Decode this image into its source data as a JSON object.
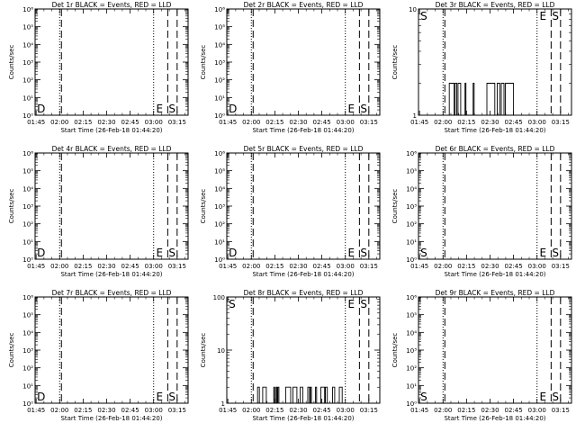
{
  "chart_data": [
    {
      "type": "line",
      "title": "Det 1r BLACK = Events, RED = LLD",
      "xlabel": "Start Time (26-Feb-18 01:44:20)",
      "ylabel": "Counts/sec",
      "log": true,
      "ylim": [
        1,
        1000000
      ],
      "ytick_values": [
        1,
        10,
        100,
        1000,
        10000,
        100000,
        1000000
      ],
      "ytick_labels": [
        "10⁰",
        "10¹",
        "10²",
        "10³",
        "10⁴",
        "10⁵",
        "10⁶"
      ],
      "xlim": [
        "01:44:20",
        "03:22:00"
      ],
      "xtick_labels": [
        "01:45",
        "02:00",
        "02:15",
        "02:30",
        "02:45",
        "03:00",
        "03:15"
      ],
      "dotted_lines": [
        "02:00",
        "03:00"
      ],
      "dashed_lines": [
        "02:00",
        "03:09",
        "03:15"
      ],
      "annotations": [
        {
          "text": "D",
          "x": "01:45",
          "position": "bottom"
        },
        {
          "text": "E",
          "x": "03:01",
          "position": "bottom"
        },
        {
          "text": "S",
          "x": "03:09",
          "position": "bottom"
        }
      ],
      "series": []
    },
    {
      "type": "line",
      "title": "Det 2r BLACK = Events, RED = LLD",
      "xlabel": "Start Time (26-Feb-18 01:44:20)",
      "ylabel": "Counts/sec",
      "log": true,
      "ylim": [
        1,
        1000000
      ],
      "ytick_values": [
        1,
        10,
        100,
        1000,
        10000,
        100000,
        1000000
      ],
      "ytick_labels": [
        "10⁰",
        "10¹",
        "10²",
        "10³",
        "10⁴",
        "10⁵",
        "10⁶"
      ],
      "xlim": [
        "01:44:20",
        "03:22:00"
      ],
      "xtick_labels": [
        "01:45",
        "02:00",
        "02:15",
        "02:30",
        "02:45",
        "03:00",
        "03:15"
      ],
      "dotted_lines": [
        "02:00",
        "03:00"
      ],
      "dashed_lines": [
        "02:00",
        "03:09",
        "03:15"
      ],
      "annotations": [
        {
          "text": "D",
          "x": "01:45",
          "position": "bottom"
        },
        {
          "text": "E",
          "x": "03:01",
          "position": "bottom"
        },
        {
          "text": "S",
          "x": "03:09",
          "position": "bottom"
        }
      ],
      "series": []
    },
    {
      "type": "line",
      "title": "Det 3r BLACK = Events, RED = LLD",
      "xlabel": "Start Time (26-Feb-18 01:44:20)",
      "ylabel": "Counts/sec",
      "log": true,
      "ylim": [
        1,
        10
      ],
      "ytick_values": [
        1,
        10
      ],
      "ytick_labels": [
        "1",
        "10"
      ],
      "xlim": [
        "01:44:20",
        "03:22:00"
      ],
      "xtick_labels": [
        "01:45",
        "02:00",
        "02:15",
        "02:30",
        "02:45",
        "03:00",
        "03:15"
      ],
      "dotted_lines": [
        "02:00",
        "03:00"
      ],
      "dashed_lines": [
        "02:00",
        "03:09",
        "03:15"
      ],
      "annotations": [
        {
          "text": "S",
          "x": "01:45",
          "position": "top"
        },
        {
          "text": "E",
          "x": "03:01",
          "position": "top"
        },
        {
          "text": "S",
          "x": "03:09",
          "position": "top"
        }
      ],
      "series": [
        {
          "style": "bursts",
          "color": "#000000",
          "bursts": [
            {
              "from": "02:04",
              "to": "02:20",
              "value": 2
            },
            {
              "from": "02:28",
              "to": "02:45",
              "value": 2
            }
          ]
        }
      ]
    },
    {
      "type": "line",
      "title": "Det 4r BLACK = Events, RED = LLD",
      "xlabel": "Start Time (26-Feb-18 01:44:20)",
      "ylabel": "Counts/sec",
      "log": true,
      "ylim": [
        1,
        1000000
      ],
      "ytick_values": [
        1,
        10,
        100,
        1000,
        10000,
        100000,
        1000000
      ],
      "ytick_labels": [
        "10⁰",
        "10¹",
        "10²",
        "10³",
        "10⁴",
        "10⁵",
        "10⁶"
      ],
      "xlim": [
        "01:44:20",
        "03:22:00"
      ],
      "xtick_labels": [
        "01:45",
        "02:00",
        "02:15",
        "02:30",
        "02:45",
        "03:00",
        "03:15"
      ],
      "dotted_lines": [
        "02:00",
        "03:00"
      ],
      "dashed_lines": [
        "02:00",
        "03:09",
        "03:15"
      ],
      "annotations": [
        {
          "text": "D",
          "x": "01:45",
          "position": "bottom"
        },
        {
          "text": "E",
          "x": "03:01",
          "position": "bottom"
        },
        {
          "text": "S",
          "x": "03:09",
          "position": "bottom"
        }
      ],
      "series": []
    },
    {
      "type": "line",
      "title": "Det 5r BLACK = Events, RED = LLD",
      "xlabel": "Start Time (26-Feb-18 01:44:20)",
      "ylabel": "Counts/sec",
      "log": true,
      "ylim": [
        1,
        1000000
      ],
      "ytick_values": [
        1,
        10,
        100,
        1000,
        10000,
        100000,
        1000000
      ],
      "ytick_labels": [
        "10⁰",
        "10¹",
        "10²",
        "10³",
        "10⁴",
        "10⁵",
        "10⁶"
      ],
      "xlim": [
        "01:44:20",
        "03:22:00"
      ],
      "xtick_labels": [
        "01:45",
        "02:00",
        "02:15",
        "02:30",
        "02:45",
        "03:00",
        "03:15"
      ],
      "dotted_lines": [
        "02:00",
        "03:00"
      ],
      "dashed_lines": [
        "02:00",
        "03:09",
        "03:15"
      ],
      "annotations": [
        {
          "text": "D",
          "x": "01:45",
          "position": "bottom"
        },
        {
          "text": "E",
          "x": "03:01",
          "position": "bottom"
        },
        {
          "text": "S",
          "x": "03:09",
          "position": "bottom"
        }
      ],
      "series": []
    },
    {
      "type": "line",
      "title": "Det 6r BLACK = Events, RED = LLD",
      "xlabel": "Start Time (26-Feb-18 01:44:20)",
      "ylabel": "Counts/sec",
      "log": true,
      "ylim": [
        1,
        1000000
      ],
      "ytick_values": [
        1,
        10,
        100,
        1000,
        10000,
        100000,
        1000000
      ],
      "ytick_labels": [
        "10⁰",
        "10¹",
        "10²",
        "10³",
        "10⁴",
        "10⁵",
        "10⁶"
      ],
      "xlim": [
        "01:44:20",
        "03:22:00"
      ],
      "xtick_labels": [
        "01:45",
        "02:00",
        "02:15",
        "02:30",
        "02:45",
        "03:00",
        "03:15"
      ],
      "dotted_lines": [
        "02:00",
        "03:00"
      ],
      "dashed_lines": [
        "02:00",
        "03:09",
        "03:15"
      ],
      "annotations": [
        {
          "text": "S",
          "x": "01:45",
          "position": "bottom"
        },
        {
          "text": "E",
          "x": "03:01",
          "position": "bottom"
        },
        {
          "text": "S",
          "x": "03:09",
          "position": "bottom"
        }
      ],
      "series": []
    },
    {
      "type": "line",
      "title": "Det 7r BLACK = Events, RED = LLD",
      "xlabel": "Start Time (26-Feb-18 01:44:20)",
      "ylabel": "Counts/sec",
      "log": true,
      "ylim": [
        1,
        1000000
      ],
      "ytick_values": [
        1,
        10,
        100,
        1000,
        10000,
        100000,
        1000000
      ],
      "ytick_labels": [
        "10⁰",
        "10¹",
        "10²",
        "10³",
        "10⁴",
        "10⁵",
        "10⁶"
      ],
      "xlim": [
        "01:44:20",
        "03:22:00"
      ],
      "xtick_labels": [
        "01:45",
        "02:00",
        "02:15",
        "02:30",
        "02:45",
        "03:00",
        "03:15"
      ],
      "dotted_lines": [
        "02:00",
        "03:00"
      ],
      "dashed_lines": [
        "02:00",
        "03:09",
        "03:15"
      ],
      "annotations": [
        {
          "text": "D",
          "x": "01:45",
          "position": "bottom"
        },
        {
          "text": "E",
          "x": "03:01",
          "position": "bottom"
        },
        {
          "text": "S",
          "x": "03:09",
          "position": "bottom"
        }
      ],
      "series": []
    },
    {
      "type": "line",
      "title": "Det 8r BLACK = Events, RED = LLD",
      "xlabel": "Start Time (26-Feb-18 01:44:20)",
      "ylabel": "Counts/sec",
      "log": true,
      "ylim": [
        1,
        100
      ],
      "ytick_values": [
        1,
        10,
        100
      ],
      "ytick_labels": [
        "1",
        "10",
        "100"
      ],
      "xlim": [
        "01:44:20",
        "03:22:00"
      ],
      "xtick_labels": [
        "01:45",
        "02:00",
        "02:15",
        "02:30",
        "02:45",
        "03:00",
        "03:15"
      ],
      "dotted_lines": [
        "02:00",
        "03:00"
      ],
      "dashed_lines": [
        "02:00",
        "03:09",
        "03:15"
      ],
      "annotations": [
        {
          "text": "S",
          "x": "01:45",
          "position": "top"
        },
        {
          "text": "E",
          "x": "03:01",
          "position": "top"
        },
        {
          "text": "S",
          "x": "03:09",
          "position": "top"
        }
      ],
      "series": [
        {
          "style": "bursts",
          "color": "#000000",
          "bursts": [
            {
              "from": "02:04",
              "to": "02:58",
              "value": 2
            }
          ]
        }
      ]
    },
    {
      "type": "line",
      "title": "Det 9r BLACK = Events, RED = LLD",
      "xlabel": "Start Time (26-Feb-18 01:44:20)",
      "ylabel": "Counts/sec",
      "log": true,
      "ylim": [
        1,
        1000000
      ],
      "ytick_values": [
        1,
        10,
        100,
        1000,
        10000,
        100000,
        1000000
      ],
      "ytick_labels": [
        "10⁰",
        "10¹",
        "10²",
        "10³",
        "10⁴",
        "10⁵",
        "10⁶"
      ],
      "xlim": [
        "01:44:20",
        "03:22:00"
      ],
      "xtick_labels": [
        "01:45",
        "02:00",
        "02:15",
        "02:30",
        "02:45",
        "03:00",
        "03:15"
      ],
      "dotted_lines": [
        "02:00",
        "03:00"
      ],
      "dashed_lines": [
        "02:00",
        "03:09",
        "03:15"
      ],
      "annotations": [
        {
          "text": "S",
          "x": "01:45",
          "position": "bottom"
        },
        {
          "text": "E",
          "x": "03:01",
          "position": "bottom"
        },
        {
          "text": "S",
          "x": "03:09",
          "position": "bottom"
        }
      ],
      "series": []
    }
  ]
}
